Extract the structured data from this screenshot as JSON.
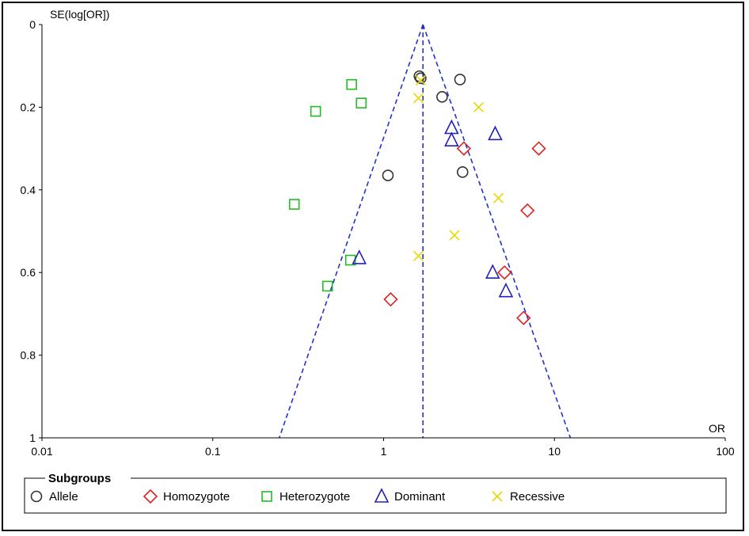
{
  "chart_data": {
    "type": "scatter",
    "title": "",
    "xlabel": "OR",
    "ylabel": "SE(log[OR])",
    "x_scale": "log",
    "xlim": [
      0.01,
      100
    ],
    "ylim": [
      0,
      1
    ],
    "y_inverted": true,
    "x_ticks": [
      "0.01",
      "0.1",
      "1",
      "10",
      "100"
    ],
    "y_ticks": [
      "0",
      "0.2",
      "0.4",
      "0.6",
      "0.8",
      "1"
    ],
    "pooled_or": 1.7,
    "funnel_bounds_at_se1": [
      0.245,
      12.4
    ],
    "legend": {
      "title": "Subgroups",
      "position": "bottom"
    },
    "series": [
      {
        "name": "Allele",
        "marker": "circle",
        "color": "#333333",
        "points": [
          {
            "x": 1.62,
            "y": 0.125
          },
          {
            "x": 1.65,
            "y": 0.13
          },
          {
            "x": 2.8,
            "y": 0.133
          },
          {
            "x": 2.2,
            "y": 0.175
          },
          {
            "x": 2.9,
            "y": 0.357
          },
          {
            "x": 1.06,
            "y": 0.365
          }
        ]
      },
      {
        "name": "Homozygote",
        "marker": "diamond",
        "color": "#dd2222",
        "points": [
          {
            "x": 2.95,
            "y": 0.3
          },
          {
            "x": 8.1,
            "y": 0.3
          },
          {
            "x": 6.95,
            "y": 0.45
          },
          {
            "x": 5.1,
            "y": 0.6
          },
          {
            "x": 1.1,
            "y": 0.665
          },
          {
            "x": 6.6,
            "y": 0.71
          }
        ]
      },
      {
        "name": "Heterozygote",
        "marker": "square",
        "color": "#22bb22",
        "points": [
          {
            "x": 0.65,
            "y": 0.145
          },
          {
            "x": 0.74,
            "y": 0.19
          },
          {
            "x": 0.4,
            "y": 0.21
          },
          {
            "x": 0.3,
            "y": 0.435
          },
          {
            "x": 0.64,
            "y": 0.57
          },
          {
            "x": 0.47,
            "y": 0.633
          }
        ]
      },
      {
        "name": "Dominant",
        "marker": "triangle",
        "color": "#2222bb",
        "points": [
          {
            "x": 2.5,
            "y": 0.25
          },
          {
            "x": 2.5,
            "y": 0.28
          },
          {
            "x": 4.5,
            "y": 0.265
          },
          {
            "x": 0.72,
            "y": 0.565
          },
          {
            "x": 4.35,
            "y": 0.6
          },
          {
            "x": 5.2,
            "y": 0.645
          }
        ]
      },
      {
        "name": "Recessive",
        "marker": "x",
        "color": "#e6d800",
        "points": [
          {
            "x": 1.65,
            "y": 0.135
          },
          {
            "x": 1.6,
            "y": 0.178
          },
          {
            "x": 3.6,
            "y": 0.2
          },
          {
            "x": 4.7,
            "y": 0.42
          },
          {
            "x": 2.6,
            "y": 0.51
          },
          {
            "x": 1.6,
            "y": 0.56
          }
        ]
      }
    ]
  }
}
